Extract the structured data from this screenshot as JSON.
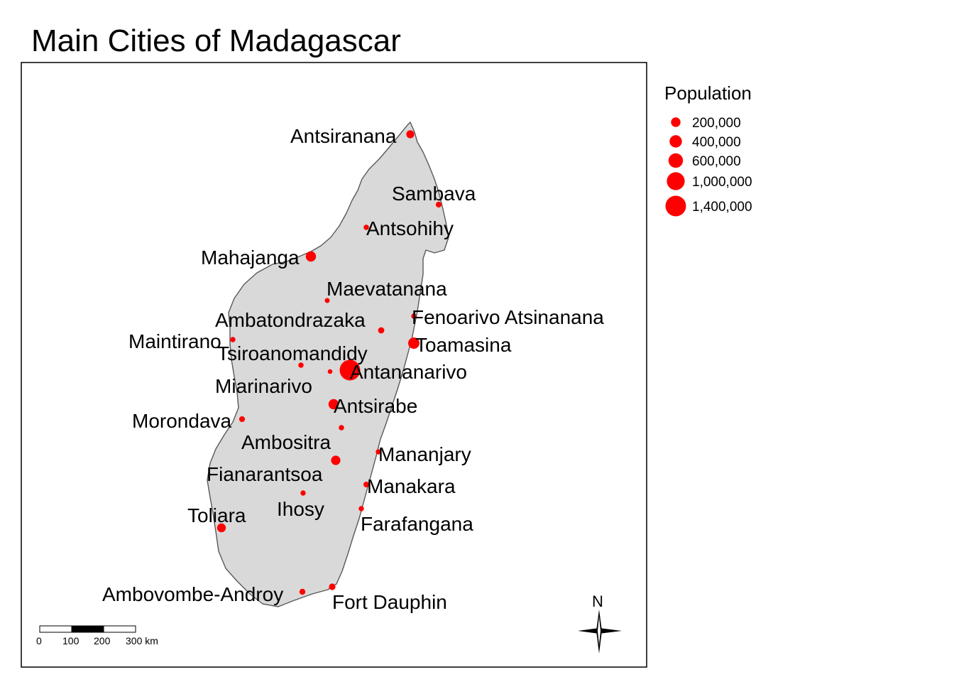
{
  "title": "Main Cities of Madagascar",
  "colors": {
    "land": "#d9d9d9",
    "coast": "#595959",
    "city": "#ff0000",
    "frame": "#000000"
  },
  "legend": {
    "title": "Population",
    "entries": [
      {
        "label": "200,000",
        "population": 200000
      },
      {
        "label": "400,000",
        "population": 400000
      },
      {
        "label": "600,000",
        "population": 600000
      },
      {
        "label": "1,000,000",
        "population": 1000000
      },
      {
        "label": "1,400,000",
        "population": 1400000
      }
    ]
  },
  "cities": [
    {
      "name": "Antsiranana",
      "population": 115000
    },
    {
      "name": "Sambava",
      "population": 40000
    },
    {
      "name": "Antsohihy",
      "population": 30000
    },
    {
      "name": "Mahajanga",
      "population": 245000
    },
    {
      "name": "Maevatanana",
      "population": 20000
    },
    {
      "name": "Fenoarivo Atsinanana",
      "population": 25000
    },
    {
      "name": "Ambatondrazaka",
      "population": 50000
    },
    {
      "name": "Toamasina",
      "population": 325000
    },
    {
      "name": "Maintirano",
      "population": 25000
    },
    {
      "name": "Tsiroanomandidy",
      "population": 30000
    },
    {
      "name": "Antananarivo",
      "population": 1400000
    },
    {
      "name": "Miarinarivo",
      "population": 15000
    },
    {
      "name": "Antsirabe",
      "population": 240000
    },
    {
      "name": "Morondava",
      "population": 40000
    },
    {
      "name": "Ambositra",
      "population": 30000
    },
    {
      "name": "Mananjary",
      "population": 25000
    },
    {
      "name": "Fianarantsoa",
      "population": 190000
    },
    {
      "name": "Manakara",
      "population": 35000
    },
    {
      "name": "Ihosy",
      "population": 25000
    },
    {
      "name": "Toliara",
      "population": 160000
    },
    {
      "name": "Farafangana",
      "population": 25000
    },
    {
      "name": "Ambovombe-Androy",
      "population": 45000
    },
    {
      "name": "Fort Dauphin",
      "population": 60000
    }
  ],
  "scale_bar": {
    "ticks": [
      "0",
      "100",
      "200",
      "300 km"
    ]
  },
  "north_arrow": {
    "label": "N",
    "icon": "north-arrow-icon"
  }
}
